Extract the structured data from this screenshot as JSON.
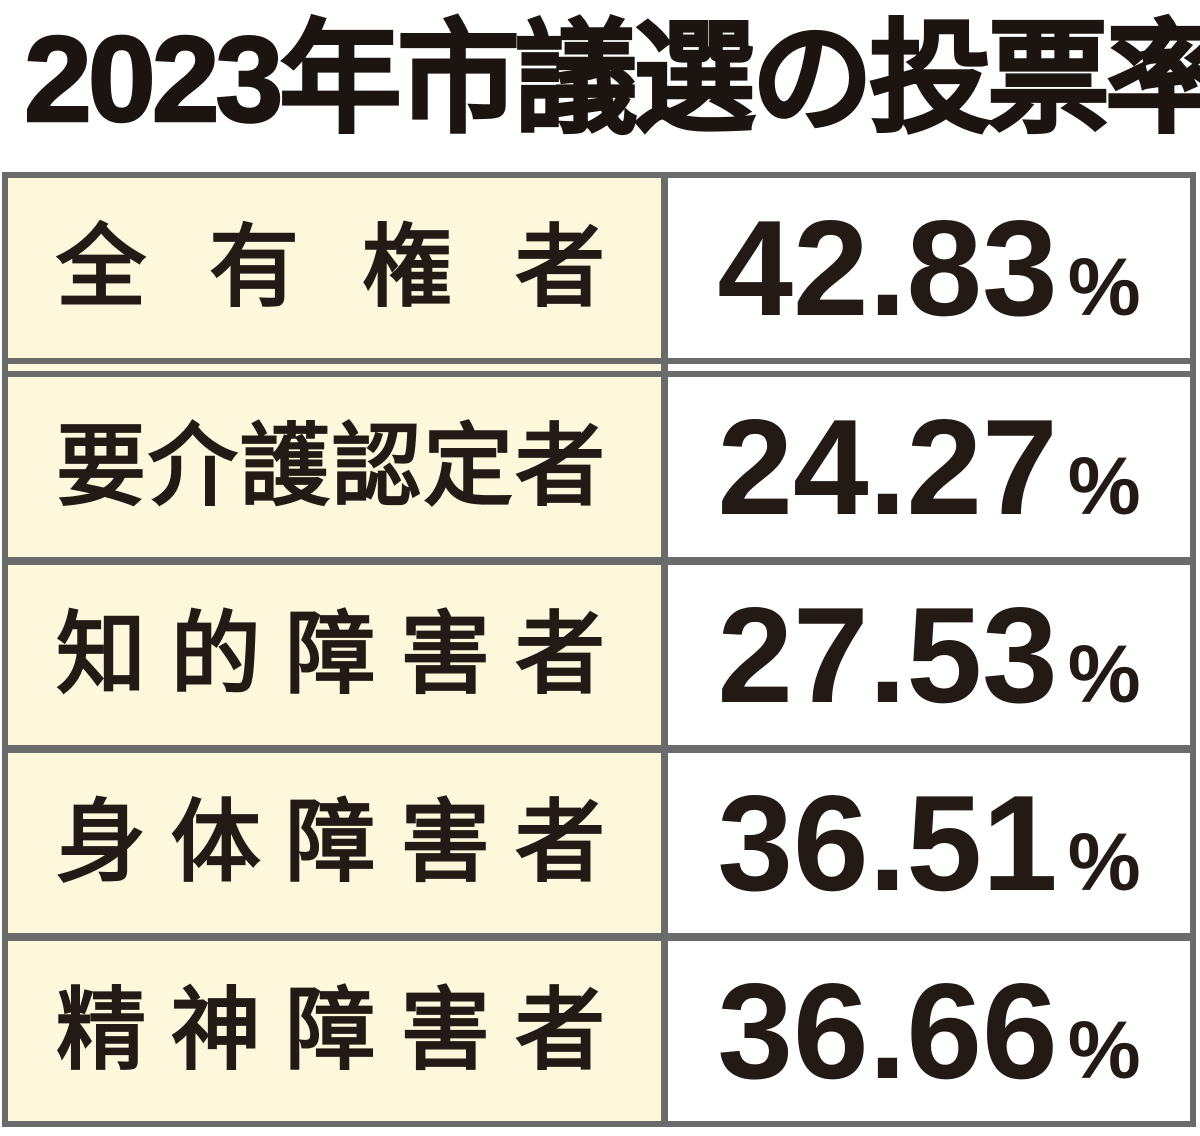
{
  "title": "2023年市議選の投票率",
  "table": {
    "rows": [
      {
        "label": "全有権者",
        "value": "42.83",
        "unit": "%"
      },
      {
        "label": "要介護認定者",
        "value": "24.27",
        "unit": "%"
      },
      {
        "label": "知的障害者",
        "value": "27.53",
        "unit": "%"
      },
      {
        "label": "身体障害者",
        "value": "36.51",
        "unit": "%"
      },
      {
        "label": "精神障害者",
        "value": "36.66",
        "unit": "%"
      }
    ]
  },
  "colors": {
    "label_background": "#fdf8dc",
    "value_background": "#ffffff",
    "border_gray": "#6b6b6b",
    "text": "#241a15"
  },
  "chart_data": {
    "type": "table",
    "title": "2023年市議選の投票率",
    "categories": [
      "全有権者",
      "要介護認定者",
      "知的障害者",
      "身体障害者",
      "精神障害者"
    ],
    "values": [
      42.83,
      24.27,
      27.53,
      36.51,
      36.66
    ],
    "unit": "%",
    "layout": "two-column table, labels left on cream background, values right on white, double rule under first row"
  }
}
